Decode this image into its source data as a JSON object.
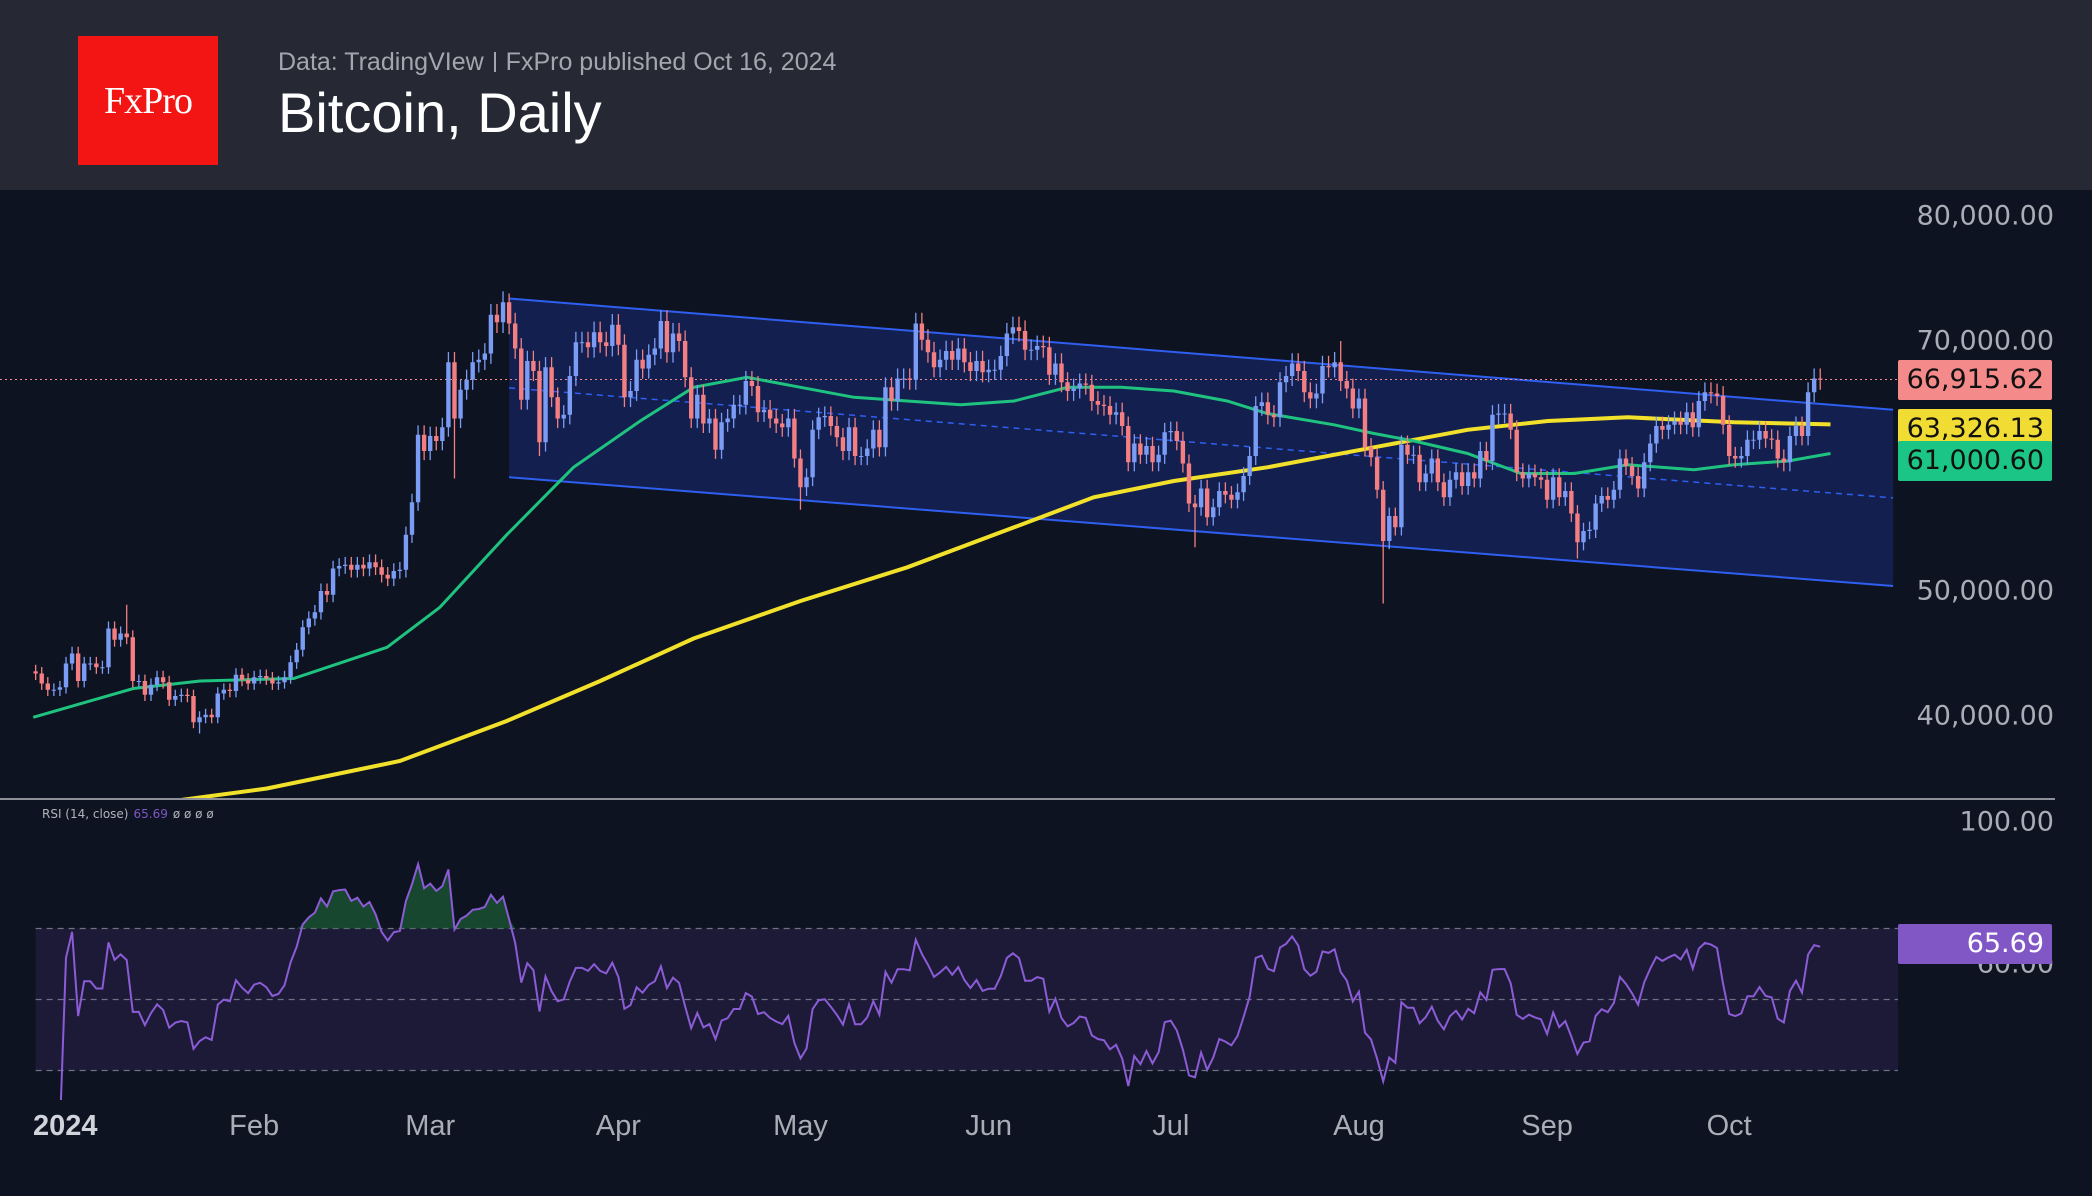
{
  "header": {
    "logo_text": "FxPro",
    "source": "Data: TradingVIew",
    "published": "FxPro published Oct 16, 2024",
    "title": "Bitcoin, Daily"
  },
  "rsi_legend": {
    "label": "RSI (14, close)",
    "value": "65.69",
    "placeholders": "ø ø ø ø"
  },
  "colors": {
    "up": "#7b9cf5",
    "down": "#f37f82",
    "sma_fast": "#1fc37f",
    "sma_slow": "#f2e12a",
    "channel": "#2f5ff0",
    "rsi": "#8b5cd6",
    "price_tag": "#f58a8a",
    "slow_tag": "#f0dc32",
    "fast_tag": "#1bc586",
    "rsi_tag": "#8157c6"
  },
  "chart_data": [
    {
      "type": "candlestick",
      "title": "Bitcoin, Daily",
      "x_unit": "days since 2024-01-01",
      "start_date": "2023-12-27",
      "ylim": [
        33000,
        83000
      ],
      "y_ticks": [
        "80,000.00",
        "70,000.00",
        "50,000.00",
        "40,000.00"
      ],
      "y_tick_values": [
        80000,
        70000,
        50000,
        40000
      ],
      "x_ticks": [
        {
          "label": "2024",
          "date": "2024-01-01"
        },
        {
          "label": "Feb",
          "date": "2024-02-01"
        },
        {
          "label": "Mar",
          "date": "2024-03-01"
        },
        {
          "label": "Apr",
          "date": "2024-04-01"
        },
        {
          "label": "May",
          "date": "2024-05-01"
        },
        {
          "label": "Jun",
          "date": "2024-06-01"
        },
        {
          "label": "Jul",
          "date": "2024-07-01"
        },
        {
          "label": "Aug",
          "date": "2024-08-01"
        },
        {
          "label": "Sep",
          "date": "2024-09-01"
        },
        {
          "label": "Oct",
          "date": "2024-10-01"
        }
      ],
      "closes_thousands": [
        [
          43.4,
          42.6,
          42.1,
          42.1,
          42.3
        ],
        [
          44.2,
          45.0,
          42.8,
          44.2,
          44.2,
          43.9,
          43.9,
          47.0,
          46.1,
          46.6,
          46.3,
          42.8,
          42.8,
          41.7,
          42.5,
          43.1,
          42.7,
          41.3,
          41.6,
          41.7,
          41.6,
          39.5,
          39.9,
          40.1,
          39.9,
          41.8,
          42.1,
          42.0,
          43.3,
          42.9,
          42.6
        ],
        [
          43.1,
          43.2,
          43.0,
          42.6,
          42.7,
          43.1,
          44.3,
          45.3,
          47.1,
          47.8,
          48.3,
          50.0,
          49.7,
          51.8,
          52.0,
          52.1,
          51.7,
          52.1,
          51.8,
          52.3,
          51.9,
          51.3,
          51.0,
          51.6,
          51.7,
          54.5,
          57.1,
          62.5,
          61.2
        ],
        [
          62.4,
          62.0,
          63.1,
          68.3,
          63.8,
          66.1,
          66.9,
          68.3,
          68.5,
          69.0,
          72.1,
          71.5,
          73.1,
          71.4,
          69.4,
          65.3,
          68.4,
          67.6,
          61.9,
          67.9,
          65.5,
          63.8,
          64.1,
          67.2,
          69.9,
          69.9,
          69.5,
          70.7,
          69.9,
          69.6,
          71.3
        ],
        [
          69.7,
          65.5,
          66.0,
          68.5,
          67.8,
          68.9,
          69.4,
          71.6,
          69.1,
          70.6,
          70.0,
          67.1,
          63.8,
          65.7,
          63.4,
          63.8,
          61.3,
          63.5,
          63.8,
          64.9,
          64.9,
          66.8,
          66.4,
          64.3,
          64.5,
          63.8,
          63.4,
          63.1,
          63.8,
          60.6
        ],
        [
          58.3,
          59.1,
          62.9,
          63.9,
          64.0,
          63.2,
          62.3,
          61.2,
          63.1,
          60.8,
          60.8,
          61.4,
          62.9,
          61.5,
          66.3,
          65.2,
          67.0,
          67.0,
          66.9,
          71.4,
          70.1,
          69.1,
          67.9,
          68.5,
          69.2,
          68.5,
          69.4,
          68.3,
          67.6,
          68.4,
          67.5
        ],
        [
          67.7,
          67.7,
          68.8,
          70.6,
          71.1,
          70.8,
          69.3,
          69.3,
          69.6,
          69.5,
          67.3,
          68.2,
          66.7,
          66.0,
          66.2,
          66.6,
          66.5,
          65.2,
          64.9,
          64.8,
          64.1,
          64.3,
          63.2,
          60.3,
          61.8,
          60.9,
          61.6,
          60.3,
          60.9,
          62.7
        ],
        [
          62.8,
          62.0,
          60.2,
          57.0,
          56.7,
          58.2,
          55.9,
          56.7,
          58.0,
          57.7,
          57.3,
          57.9,
          59.2,
          60.8,
          64.8,
          65.1,
          64.1,
          63.9,
          66.7,
          67.2,
          68.2,
          67.6,
          65.9,
          65.4,
          65.8,
          68.0,
          67.9,
          68.3,
          66.8,
          66.2,
          64.6
        ],
        [
          65.4,
          61.5,
          60.7,
          58.1,
          54.0,
          56.0,
          55.1,
          61.7,
          60.9,
          60.9,
          58.7,
          59.4,
          60.6,
          58.7,
          57.5,
          58.9,
          59.5,
          58.4,
          59.5,
          59.0,
          61.2,
          60.4,
          64.1,
          64.2,
          64.2,
          62.9,
          59.5,
          59.0,
          59.4,
          59.1,
          58.9
        ],
        [
          57.3,
          59.1,
          57.5,
          58.0,
          56.2,
          53.9,
          54.8,
          54.9,
          57.0,
          57.6,
          57.3,
          58.1,
          60.6,
          60.0,
          59.2,
          58.2,
          60.3,
          61.8,
          63.2,
          62.9,
          63.3,
          63.6,
          63.3,
          64.3,
          63.1,
          65.2,
          65.9,
          65.8,
          65.6,
          63.3
        ],
        [
          60.8,
          60.6,
          60.8,
          62.1,
          62.1,
          62.8,
          62.2,
          62.1,
          60.6,
          60.3,
          62.4,
          63.2,
          62.4,
          65.9,
          67.0,
          66.9
        ]
      ],
      "wick_extremes": [
        {
          "date": "2024-01-23",
          "low": 38.6
        },
        {
          "date": "2024-01-11",
          "high": 48.9
        },
        {
          "date": "2024-03-05",
          "low": 59.0
        },
        {
          "date": "2024-03-14",
          "high": 73.8
        },
        {
          "date": "2024-03-19",
          "low": 60.8
        },
        {
          "date": "2024-05-01",
          "low": 56.5
        },
        {
          "date": "2024-07-05",
          "low": 53.5
        },
        {
          "date": "2024-07-29",
          "high": 70.0
        },
        {
          "date": "2024-08-05",
          "low": 49.0
        },
        {
          "date": "2024-09-06",
          "low": 52.6
        }
      ],
      "current_price": {
        "value": 66915.62,
        "label": "66,915.62"
      },
      "sma_slow": {
        "label": "63,326.13",
        "points": [
          [
            17.7,
            33200
          ],
          [
            33.1,
            34200
          ],
          [
            55,
            36400
          ],
          [
            72.6,
            39600
          ],
          [
            88,
            42800
          ],
          [
            103.4,
            46200
          ],
          [
            121,
            49200
          ],
          [
            138.6,
            51900
          ],
          [
            156.2,
            55100
          ],
          [
            169.3,
            57500
          ],
          [
            182.5,
            58800
          ],
          [
            197.9,
            59900
          ],
          [
            215.5,
            61500
          ],
          [
            230.9,
            62900
          ],
          [
            244.1,
            63600
          ],
          [
            257.3,
            63900
          ],
          [
            274.8,
            63500
          ],
          [
            290.7,
            63330
          ]
        ]
      },
      "sma_fast": {
        "label": "61,000.60",
        "points": [
          [
            -5.4,
            39900
          ],
          [
            11.1,
            42200
          ],
          [
            22.1,
            42800
          ],
          [
            37.5,
            43000
          ],
          [
            52.9,
            45500
          ],
          [
            61.6,
            48700
          ],
          [
            72.6,
            54500
          ],
          [
            83.6,
            59900
          ],
          [
            94.6,
            63600
          ],
          [
            103.4,
            66300
          ],
          [
            112.2,
            67100
          ],
          [
            121,
            66300
          ],
          [
            129.8,
            65500
          ],
          [
            138.6,
            65200
          ],
          [
            147.4,
            64900
          ],
          [
            156.2,
            65200
          ],
          [
            165,
            66300
          ],
          [
            173.8,
            66300
          ],
          [
            182.5,
            66000
          ],
          [
            191.3,
            65200
          ],
          [
            197.9,
            64200
          ],
          [
            208.9,
            63300
          ],
          [
            215.5,
            62600
          ],
          [
            222.1,
            62000
          ],
          [
            230.9,
            61000
          ],
          [
            239.7,
            59400
          ],
          [
            248.5,
            59400
          ],
          [
            257.3,
            60100
          ],
          [
            268.2,
            59700
          ],
          [
            274.8,
            60100
          ],
          [
            283.7,
            60400
          ],
          [
            290.7,
            61000
          ]
        ]
      },
      "channel": {
        "upper": [
          [
            73,
            73400
          ],
          [
            301,
            64500
          ]
        ],
        "lower": [
          [
            73,
            59100
          ],
          [
            301,
            50400
          ]
        ]
      }
    },
    {
      "type": "line",
      "title": "RSI (14, close)",
      "period": 14,
      "ylim": [
        0,
        100
      ],
      "y_ticks": [
        "100.00",
        "60.00"
      ],
      "y_tick_values": [
        100,
        60
      ],
      "bands": [
        70,
        50,
        30
      ],
      "last_value": {
        "value": 65.69,
        "label": "65.69"
      }
    }
  ]
}
